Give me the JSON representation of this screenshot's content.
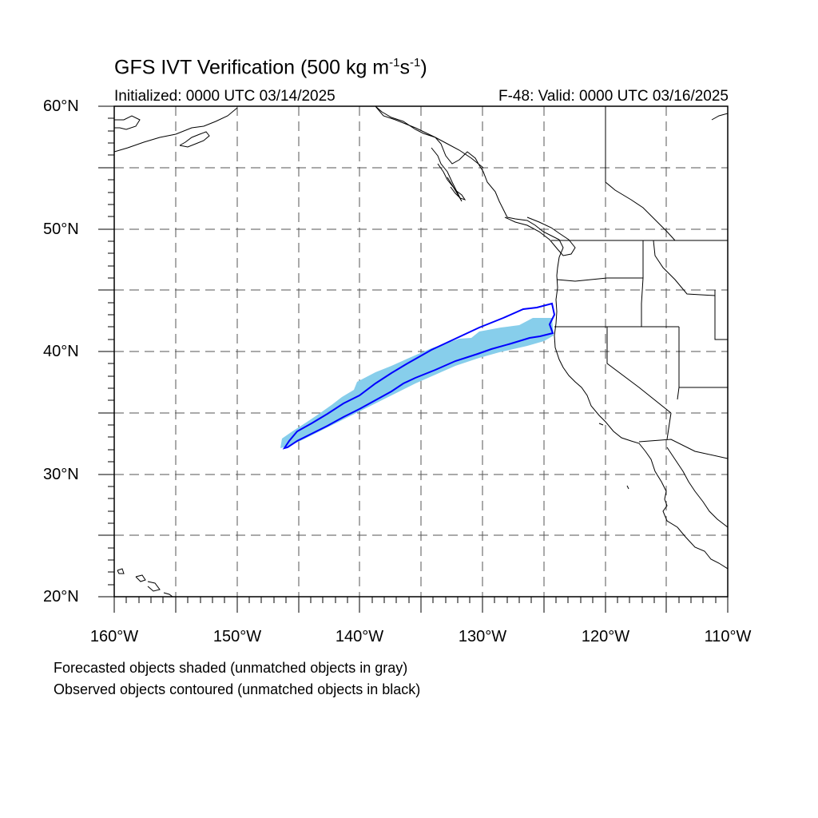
{
  "title": {
    "prefix": "GFS IVT Verification (500 kg m",
    "exp1": "-1",
    "mid": "s",
    "exp2": "-1",
    "suffix": ")"
  },
  "initialized": "Initialized: 0000 UTC 03/14/2025",
  "valid": "F-48: Valid: 0000 UTC 03/16/2025",
  "lat_labels": [
    "60°N",
    "50°N",
    "40°N",
    "30°N",
    "20°N"
  ],
  "lon_labels": [
    "160°W",
    "150°W",
    "140°W",
    "130°W",
    "120°W",
    "110°W"
  ],
  "footnotes": [
    "Forecasted objects shaded (unmatched objects in gray)",
    "Observed objects contoured (unmatched objects in black)"
  ],
  "map_extent": {
    "lon": [
      -160,
      -110
    ],
    "lat": [
      20,
      60
    ]
  },
  "colors": {
    "forecast_fill": "#87ceeb",
    "observed_contour": "#0000ff",
    "coastline": "#000000",
    "grid": "#555555"
  }
}
